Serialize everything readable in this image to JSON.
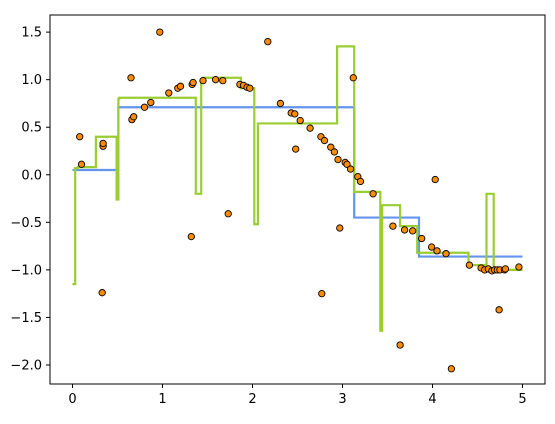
{
  "chart_data": {
    "type": "line",
    "title": "",
    "xlabel": "",
    "ylabel": "",
    "xlim": [
      -0.25,
      5.25
    ],
    "ylim": [
      -2.2,
      1.68
    ],
    "grid": false,
    "legend": "none",
    "x_ticks": [
      0,
      1,
      2,
      3,
      4,
      5
    ],
    "y_ticks": [
      -2.0,
      -1.5,
      -1.0,
      -0.5,
      0.0,
      0.5,
      1.0,
      1.5
    ],
    "x_tick_labels": [
      "0",
      "1",
      "2",
      "3",
      "4",
      "5"
    ],
    "y_tick_labels": [
      "−2.0",
      "−1.5",
      "−1.0",
      "−0.5",
      "0.0",
      "0.5",
      "1.0",
      "1.5"
    ],
    "colors": {
      "scatter_fill": "#ff8c00",
      "scatter_edge": "#000000",
      "series_1": "#6495ed",
      "series_2": "#9acd32"
    },
    "scatter": {
      "x": [
        0.08,
        0.1,
        0.33,
        0.34,
        0.34,
        0.65,
        0.66,
        0.68,
        0.8,
        0.87,
        0.97,
        1.07,
        1.17,
        1.2,
        1.32,
        1.33,
        1.34,
        1.45,
        1.59,
        1.67,
        1.73,
        1.86,
        1.9,
        1.94,
        1.97,
        2.17,
        2.31,
        2.43,
        2.47,
        2.48,
        2.53,
        2.64,
        2.76,
        2.77,
        2.8,
        2.87,
        2.91,
        2.95,
        2.97,
        3.03,
        3.05,
        3.09,
        3.12,
        3.17,
        3.2,
        3.34,
        3.56,
        3.64,
        3.69,
        3.78,
        3.88,
        3.99,
        4.03,
        4.05,
        4.15,
        4.21,
        4.41,
        4.54,
        4.58,
        4.62,
        4.66,
        4.69,
        4.72,
        4.74,
        4.75,
        4.8,
        4.81,
        4.96
      ],
      "y": [
        0.4,
        0.11,
        -1.24,
        0.3,
        0.33,
        1.02,
        0.58,
        0.61,
        0.71,
        0.76,
        1.5,
        0.86,
        0.91,
        0.93,
        -0.65,
        0.95,
        0.97,
        0.99,
        1.0,
        0.99,
        -0.41,
        0.95,
        0.94,
        0.92,
        0.91,
        1.4,
        0.75,
        0.65,
        0.64,
        0.27,
        0.57,
        0.49,
        0.4,
        -1.25,
        0.36,
        0.29,
        0.24,
        0.16,
        -0.56,
        0.13,
        0.11,
        0.06,
        1.02,
        -0.02,
        -0.07,
        -0.2,
        -0.54,
        -1.79,
        -0.58,
        -0.59,
        -0.67,
        -0.76,
        -0.05,
        -0.8,
        -0.83,
        -2.04,
        -0.95,
        -0.98,
        -1.0,
        -0.99,
        -1.01,
        -1.0,
        -1.0,
        -1.42,
        -1.0,
        -1.0,
        -0.99,
        -0.97
      ]
    },
    "series": [
      {
        "x": [
          0.0,
          0.51,
          0.51,
          3.13,
          3.13,
          3.85,
          3.85,
          5.0
        ],
        "y": [
          0.05,
          0.05,
          0.71,
          0.71,
          -0.45,
          -0.45,
          -0.86,
          -0.86
        ]
      },
      {
        "x": [
          0.0,
          0.03,
          0.03,
          0.06,
          0.06,
          0.26,
          0.26,
          0.49,
          0.49,
          0.51,
          0.51,
          0.52,
          0.52,
          1.37,
          1.37,
          1.43,
          1.43,
          1.45,
          1.45,
          1.87,
          1.87,
          2.02,
          2.02,
          2.06,
          2.06,
          2.08,
          2.08,
          2.94,
          2.94,
          2.96,
          2.96,
          3.13,
          3.13,
          3.42,
          3.42,
          3.44,
          3.44,
          3.46,
          3.46,
          3.64,
          3.64,
          3.83,
          3.83,
          3.9,
          3.9,
          4.4,
          4.4,
          4.6,
          4.6,
          4.68,
          4.68,
          5.0
        ],
        "y": [
          -1.15,
          -1.15,
          0.07,
          0.07,
          0.08,
          0.08,
          0.4,
          0.4,
          -0.26,
          -0.26,
          0.8,
          0.8,
          0.81,
          0.81,
          -0.2,
          -0.2,
          1.0,
          1.0,
          1.02,
          1.02,
          0.91,
          0.91,
          -0.52,
          -0.52,
          0.54,
          0.54,
          0.54,
          0.54,
          1.35,
          1.35,
          1.35,
          1.35,
          -0.18,
          -0.18,
          -1.64,
          -1.64,
          -0.32,
          -0.32,
          -0.32,
          -0.32,
          -0.54,
          -0.54,
          -0.82,
          -0.82,
          -0.82,
          -0.82,
          -0.95,
          -0.95,
          -0.2,
          -0.2,
          -1.0,
          -1.0
        ]
      }
    ]
  }
}
